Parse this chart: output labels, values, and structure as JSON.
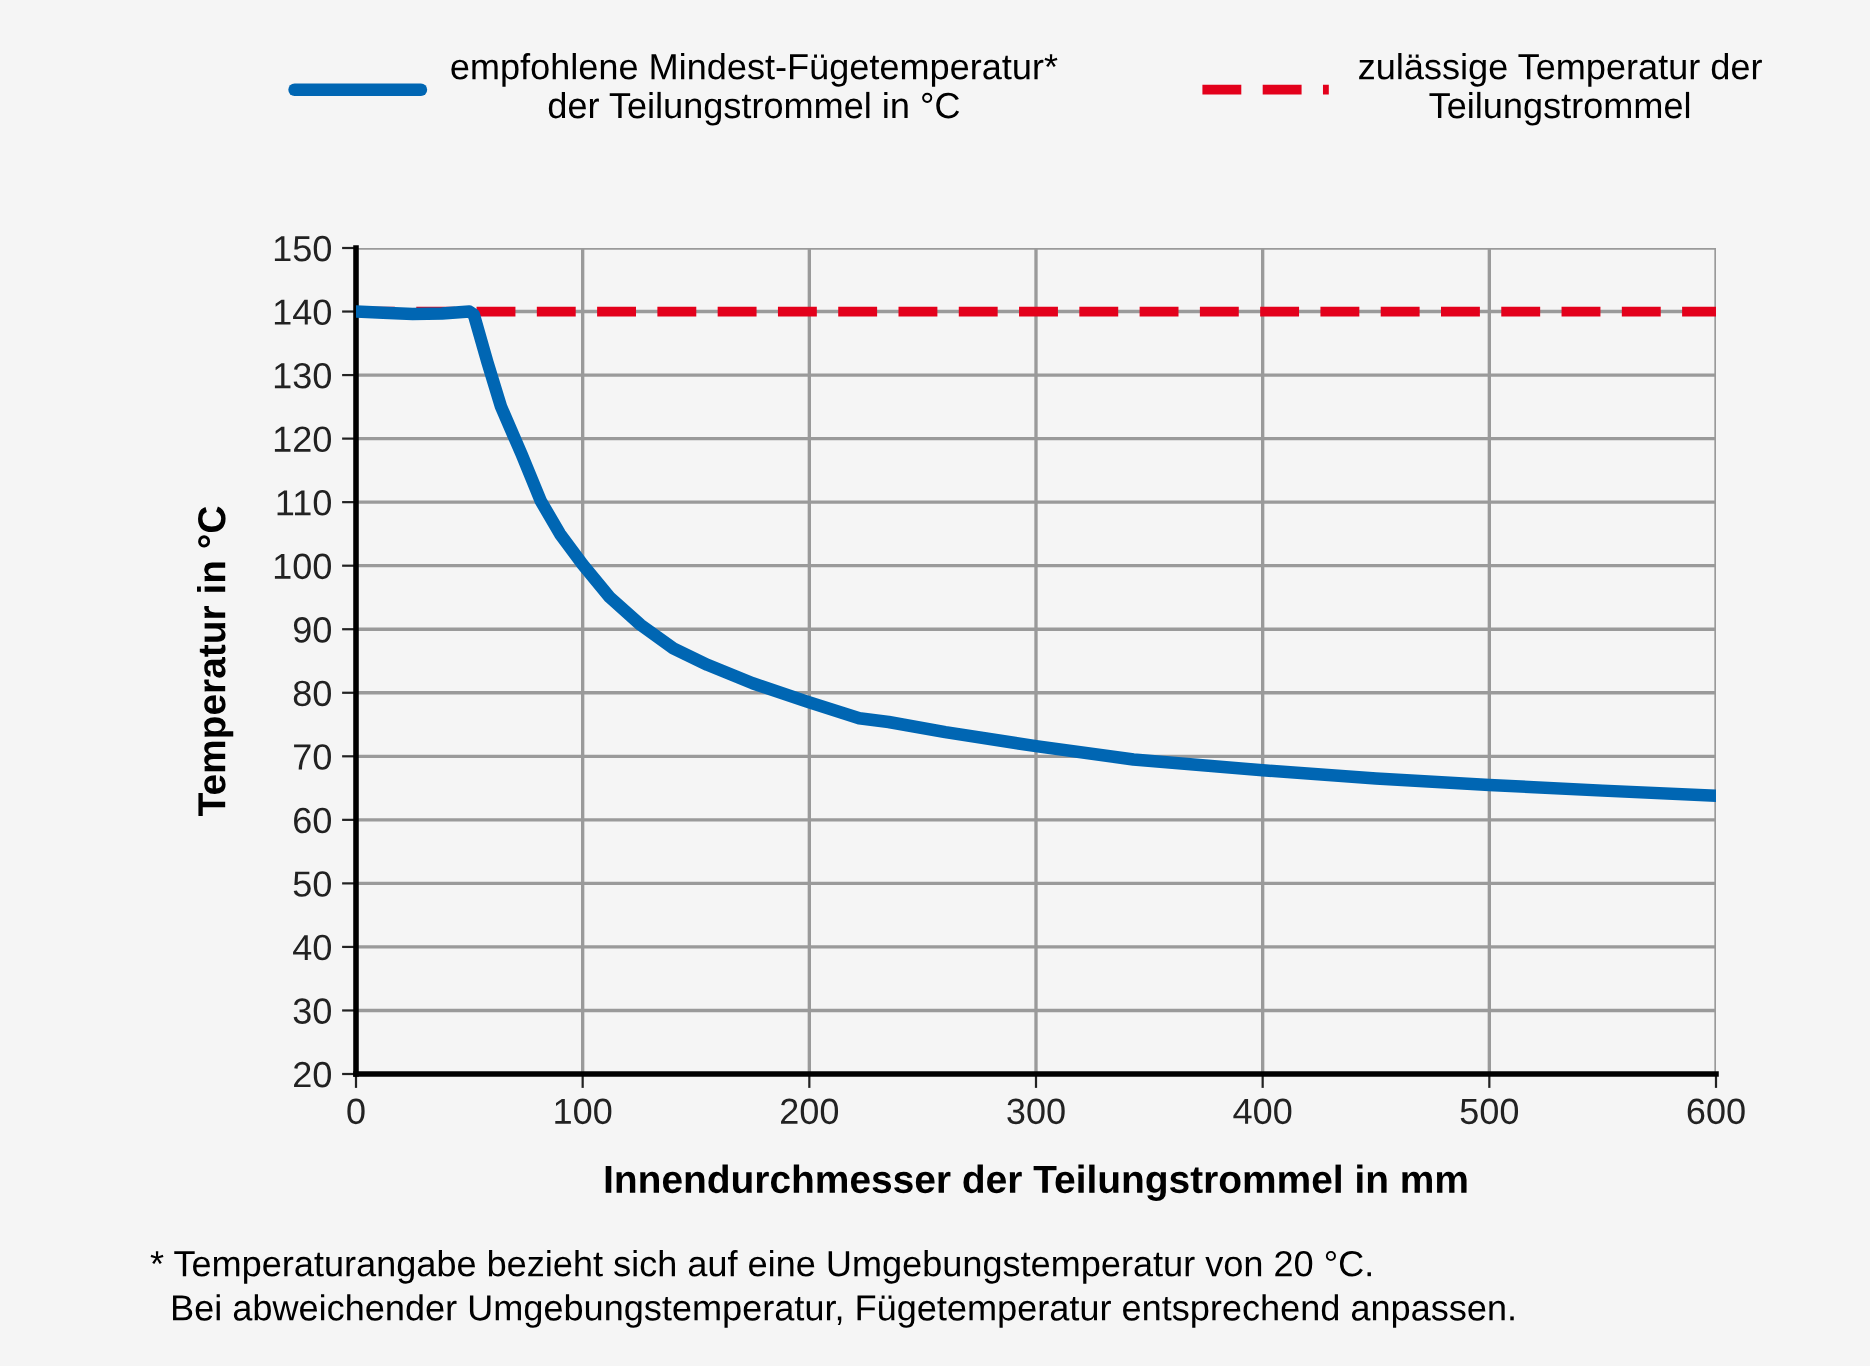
{
  "chart_data": {
    "type": "line",
    "xlabel": "Innendurchmesser der Teilungstrommel in mm",
    "ylabel": "Temperatur in °C",
    "series": [
      {
        "name": "empfohlene Mindest-Fügetemperatur*\nder Teilungstrommel in °C",
        "color": "#0066b3",
        "line_style": "solid",
        "x": [
          0,
          12,
          25,
          38,
          50,
          52,
          58,
          64,
          73,
          81.5,
          90,
          100,
          112,
          125.5,
          140,
          155,
          175,
          199,
          222,
          235,
          260,
          300,
          343,
          400,
          450,
          500,
          550,
          600
        ],
        "values": [
          140,
          139.8,
          139.6,
          139.7,
          140,
          139.5,
          132,
          125,
          117.6,
          110.2,
          105,
          100.2,
          95,
          90.7,
          87,
          84.4,
          81.5,
          78.6,
          76,
          75.4,
          73.8,
          71.6,
          69.5,
          67.8,
          66.5,
          65.5,
          64.6,
          63.8
        ]
      }
    ],
    "ref_lines": [
      {
        "axis": "y",
        "value": 140,
        "label": "zulässige Temperatur der\nTeilungstrommel",
        "color": "#e3001b",
        "line_style": "dashed"
      }
    ],
    "xlim": [
      0,
      600
    ],
    "xticks": [
      0,
      100,
      200,
      300,
      400,
      500,
      600
    ],
    "ylim": [
      20,
      150
    ],
    "yticks": [
      20,
      30,
      40,
      50,
      60,
      70,
      80,
      90,
      100,
      110,
      120,
      130,
      140,
      150
    ],
    "grid": true,
    "legend": "top",
    "annotations": [
      "* Temperaturangabe bezieht sich auf eine Umgebungstemperatur von 20 °C.\n  Bei abweichender Umgebungstemperatur, Fügetemperatur entsprechend anpassen."
    ]
  }
}
